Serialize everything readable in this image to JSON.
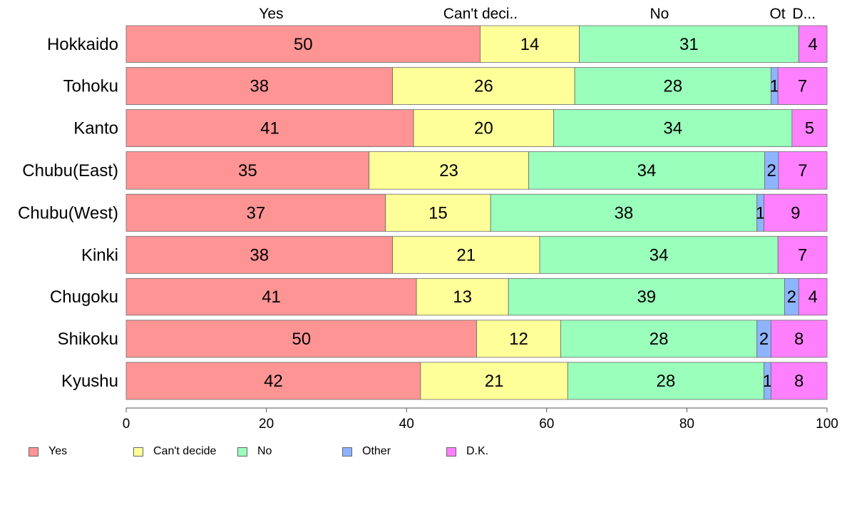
{
  "chart_data": {
    "type": "bar",
    "orientation": "horizontal",
    "stacked": true,
    "categories": [
      "Hokkaido",
      "Tohoku",
      "Kanto",
      "Chubu(East)",
      "Chubu(West)",
      "Kinki",
      "Chugoku",
      "Shikoku",
      "Kyushu"
    ],
    "series": [
      {
        "name": "Yes",
        "color": "#ff9494",
        "values": [
          50,
          38,
          41,
          35,
          37,
          38,
          41,
          50,
          42
        ]
      },
      {
        "name": "Can't decide",
        "color": "#ffff99",
        "values": [
          14,
          26,
          20,
          23,
          15,
          21,
          13,
          12,
          21
        ]
      },
      {
        "name": "No",
        "color": "#99ffbb",
        "values": [
          31,
          28,
          34,
          34,
          38,
          34,
          39,
          28,
          28
        ]
      },
      {
        "name": "Other",
        "color": "#8eb4ff",
        "values": [
          0,
          1,
          0,
          2,
          1,
          0,
          2,
          2,
          1
        ]
      },
      {
        "name": "D.K.",
        "color": "#ff80ff",
        "values": [
          4,
          7,
          5,
          7,
          9,
          7,
          4,
          8,
          8
        ]
      }
    ],
    "top_labels": [
      "Yes",
      "Can't deci..",
      "No",
      "Ot",
      "D..."
    ],
    "xticks": [
      "0",
      "20",
      "40",
      "60",
      "80",
      "100"
    ],
    "xlim": [
      0,
      100
    ],
    "legend_placement": "bottom-left",
    "grid": false
  }
}
